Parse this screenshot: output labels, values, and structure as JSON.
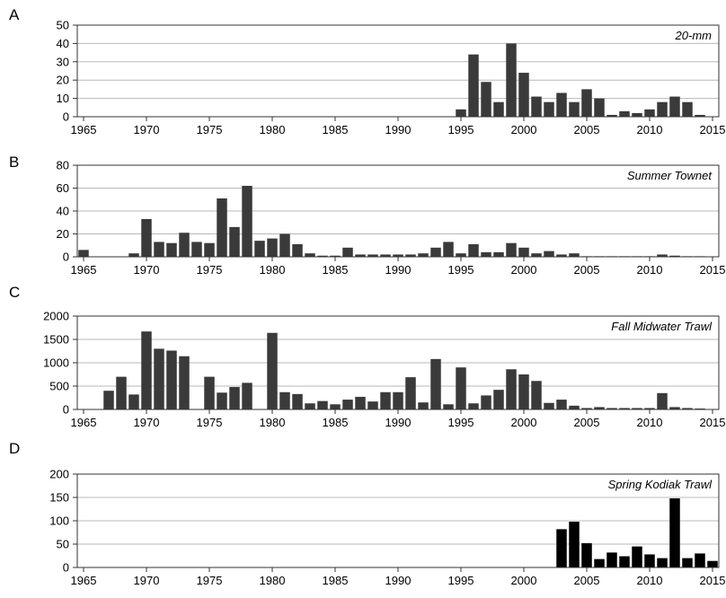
{
  "chart_data": [
    {
      "type": "bar",
      "panel_label": "A",
      "title": "20-mm",
      "xlabel": "",
      "ylabel": "",
      "xlim": [
        1964.5,
        2015.5
      ],
      "ylim": [
        0,
        50
      ],
      "yticks": [
        0,
        10,
        20,
        30,
        40,
        50
      ],
      "xticks": [
        1965,
        1970,
        1975,
        1980,
        1985,
        1990,
        1995,
        2000,
        2005,
        2010,
        2015
      ],
      "grid": true,
      "bar_color": "#3a3a3a",
      "x": [
        1995,
        1996,
        1997,
        1998,
        1999,
        2000,
        2001,
        2002,
        2003,
        2004,
        2005,
        2006,
        2007,
        2008,
        2009,
        2010,
        2011,
        2012,
        2013,
        2014,
        2015
      ],
      "values": [
        4,
        34,
        19,
        8,
        40,
        24,
        11,
        8,
        13,
        8,
        15,
        10,
        1,
        3,
        2,
        4,
        8,
        11,
        8,
        1,
        0
      ]
    },
    {
      "type": "bar",
      "panel_label": "B",
      "title": "Summer Townet",
      "xlabel": "",
      "ylabel": "",
      "xlim": [
        1964.5,
        2015.5
      ],
      "ylim": [
        0,
        80
      ],
      "yticks": [
        0,
        20,
        40,
        60,
        80
      ],
      "xticks": [
        1965,
        1970,
        1975,
        1980,
        1985,
        1990,
        1995,
        2000,
        2005,
        2010,
        2015
      ],
      "grid": true,
      "bar_color": "#3a3a3a",
      "x": [
        1965,
        1969,
        1970,
        1971,
        1972,
        1973,
        1974,
        1975,
        1976,
        1977,
        1978,
        1979,
        1980,
        1981,
        1982,
        1983,
        1984,
        1985,
        1986,
        1987,
        1988,
        1989,
        1990,
        1991,
        1992,
        1993,
        1994,
        1995,
        1996,
        1997,
        1998,
        1999,
        2000,
        2001,
        2002,
        2003,
        2004,
        2005,
        2006,
        2007,
        2008,
        2009,
        2010,
        2011,
        2012,
        2013,
        2014
      ],
      "values": [
        6,
        3,
        33,
        13,
        12,
        21,
        13,
        12,
        51,
        26,
        62,
        14,
        16,
        20,
        11,
        3,
        1,
        1,
        8,
        2,
        2,
        2,
        2,
        2,
        3,
        8,
        13,
        3,
        11,
        4,
        4,
        12,
        8,
        3,
        5,
        2,
        3,
        0.5,
        0.5,
        0.5,
        0.5,
        0.5,
        0.5,
        2,
        1,
        0.5,
        0.5
      ]
    },
    {
      "type": "bar",
      "panel_label": "C",
      "title": "Fall Midwater Trawl",
      "xlabel": "",
      "ylabel": "",
      "xlim": [
        1964.5,
        2015.5
      ],
      "ylim": [
        0,
        2000
      ],
      "yticks": [
        0,
        500,
        1000,
        1500,
        2000
      ],
      "xticks": [
        1965,
        1970,
        1975,
        1980,
        1985,
        1990,
        1995,
        2000,
        2005,
        2010,
        2015
      ],
      "grid": true,
      "bar_color": "#3a3a3a",
      "x": [
        1967,
        1968,
        1969,
        1970,
        1971,
        1972,
        1973,
        1975,
        1976,
        1977,
        1978,
        1980,
        1981,
        1982,
        1983,
        1984,
        1985,
        1986,
        1987,
        1988,
        1989,
        1990,
        1991,
        1992,
        1993,
        1994,
        1995,
        1996,
        1997,
        1998,
        1999,
        2000,
        2001,
        2002,
        2003,
        2004,
        2005,
        2006,
        2007,
        2008,
        2009,
        2010,
        2011,
        2012,
        2013,
        2014
      ],
      "values": [
        400,
        700,
        320,
        1670,
        1300,
        1260,
        1140,
        700,
        360,
        480,
        570,
        1640,
        370,
        330,
        130,
        180,
        110,
        210,
        270,
        170,
        370,
        370,
        690,
        150,
        1080,
        110,
        900,
        130,
        300,
        420,
        860,
        750,
        610,
        140,
        210,
        80,
        30,
        50,
        30,
        30,
        30,
        30,
        350,
        50,
        30,
        20
      ]
    },
    {
      "type": "bar",
      "panel_label": "D",
      "title": "Spring Kodiak Trawl",
      "xlabel": "",
      "ylabel": "",
      "xlim": [
        1964.5,
        2015.5
      ],
      "ylim": [
        0,
        200
      ],
      "yticks": [
        0,
        50,
        100,
        150,
        200
      ],
      "xticks": [
        1965,
        1970,
        1975,
        1980,
        1985,
        1990,
        1995,
        2000,
        2005,
        2010,
        2015
      ],
      "grid": true,
      "bar_color": "#000000",
      "x": [
        2003,
        2004,
        2005,
        2006,
        2007,
        2008,
        2009,
        2010,
        2011,
        2012,
        2013,
        2014,
        2015
      ],
      "values": [
        82,
        98,
        52,
        18,
        32,
        24,
        45,
        28,
        20,
        148,
        20,
        30,
        14
      ]
    }
  ]
}
